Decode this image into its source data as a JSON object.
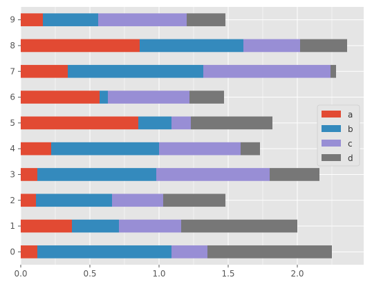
{
  "chart_data": {
    "type": "bar",
    "orientation": "horizontal",
    "stacked": true,
    "style": "ggplot",
    "categories": [
      "0",
      "1",
      "2",
      "3",
      "4",
      "5",
      "6",
      "7",
      "8",
      "9"
    ],
    "series": [
      {
        "name": "a",
        "color": "#E24A33",
        "values": [
          0.12,
          0.37,
          0.11,
          0.12,
          0.22,
          0.85,
          0.57,
          0.34,
          0.86,
          0.16
        ]
      },
      {
        "name": "b",
        "color": "#348ABD",
        "values": [
          0.97,
          0.34,
          0.55,
          0.86,
          0.78,
          0.24,
          0.06,
          0.98,
          0.75,
          0.4
        ]
      },
      {
        "name": "c",
        "color": "#988ED5",
        "values": [
          0.26,
          0.45,
          0.37,
          0.82,
          0.59,
          0.14,
          0.59,
          0.92,
          0.41,
          0.64
        ]
      },
      {
        "name": "d",
        "color": "#777777",
        "values": [
          0.9,
          0.84,
          0.45,
          0.36,
          0.14,
          0.59,
          0.25,
          0.04,
          0.34,
          0.28
        ]
      }
    ],
    "x_ticks": [
      "0.0",
      "0.5",
      "1.0",
      "1.5",
      "2.0"
    ],
    "x_tick_values": [
      0,
      0.5,
      1.0,
      1.5,
      2.0
    ],
    "xlim": [
      0,
      2.48
    ],
    "title": "",
    "xlabel": "",
    "ylabel": "",
    "grid": true,
    "legend_position": "center-right"
  }
}
